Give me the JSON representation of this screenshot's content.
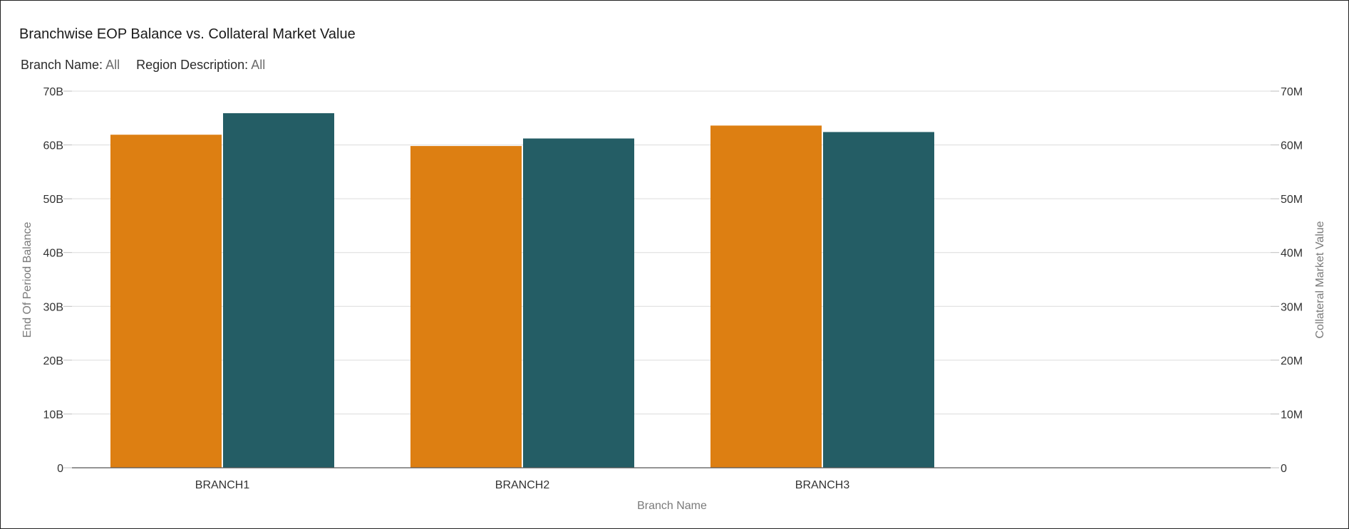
{
  "chart_data": {
    "type": "bar",
    "title": "Branchwise EOP Balance vs. Collateral Market Value",
    "filters": [
      {
        "label": "Branch Name:",
        "value": "All"
      },
      {
        "label": "Region Description:",
        "value": "All"
      }
    ],
    "categories": [
      "BRANCH1",
      "BRANCH2",
      "BRANCH3"
    ],
    "xlabel": "Branch Name",
    "ylabel": "End Of Period Balance",
    "y2label": "Collateral Market Value",
    "ylim": [
      0,
      70
    ],
    "y2lim": [
      0,
      70
    ],
    "y_ticks": [
      "0",
      "10B",
      "20B",
      "30B",
      "40B",
      "50B",
      "60B",
      "70B"
    ],
    "y2_ticks": [
      "0",
      "10M",
      "20M",
      "30M",
      "40M",
      "50M",
      "60M",
      "70M"
    ],
    "grid": true,
    "series": [
      {
        "axis": "left",
        "unit": "B",
        "color": "#dd7f12",
        "values": [
          61.9,
          59.8,
          63.6
        ]
      },
      {
        "axis": "right",
        "unit": "M",
        "color": "#245d65",
        "values": [
          65.9,
          61.2,
          62.4
        ]
      }
    ]
  }
}
